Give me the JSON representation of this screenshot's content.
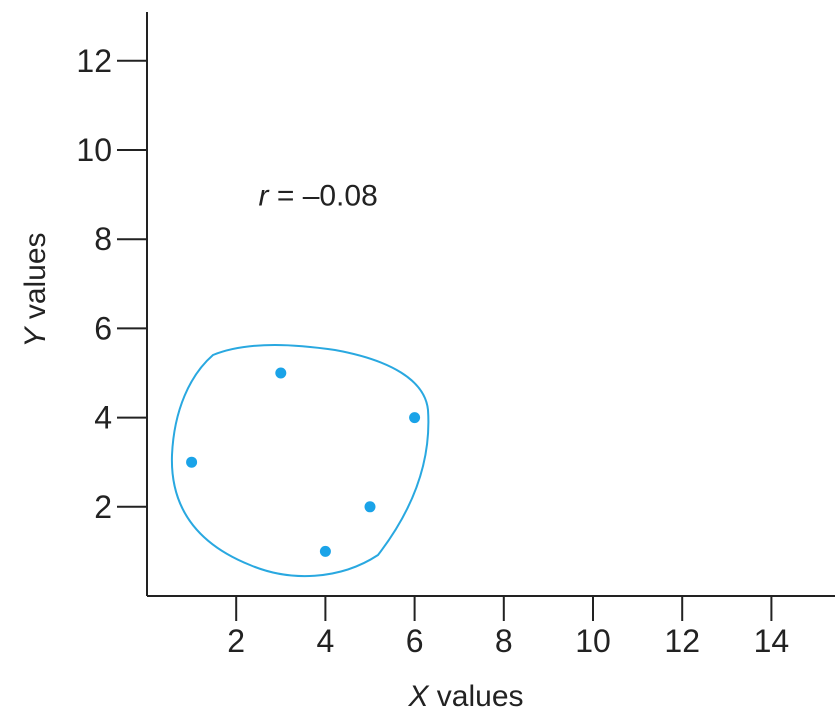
{
  "chart_data": {
    "type": "scatter",
    "title": "",
    "xlabel_var": "X",
    "xlabel_rest": " values",
    "ylabel_var": "Y",
    "ylabel_rest": " values",
    "xlim": [
      0,
      15
    ],
    "ylim": [
      0,
      13
    ],
    "x_ticks": [
      2,
      4,
      6,
      8,
      10,
      12,
      14
    ],
    "y_ticks": [
      2,
      4,
      6,
      8,
      10,
      12
    ],
    "points": [
      {
        "x": 1,
        "y": 3
      },
      {
        "x": 3,
        "y": 5
      },
      {
        "x": 4,
        "y": 1
      },
      {
        "x": 5,
        "y": 2
      },
      {
        "x": 6,
        "y": 4
      }
    ],
    "annotation": {
      "var": "r",
      "rest": " = –0.08",
      "x": 2.5,
      "y": 9
    },
    "point_color": "#1aa3e8",
    "outline_color": "#29a8e0",
    "axis_color": "#222222",
    "grid": false
  }
}
